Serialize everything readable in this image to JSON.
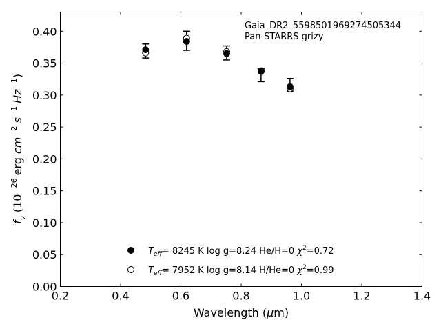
{
  "chart_data": {
    "type": "scatter",
    "annotation": [
      "Gaia_DR2_5598501969274505344",
      "Pan-STARRS grizy"
    ],
    "xlabel": {
      "text": "Wavelength (",
      "mu": "μ",
      "unit": "m)"
    },
    "ylabel": {
      "f": "f",
      "nu": "ν",
      "ten": "(10",
      "exp": "−26",
      "erg": "erg",
      "cm": "cm",
      "cm_exp": "−2",
      "s": "s",
      "s_exp": "−1",
      "hz": "Hz",
      "hz_exp": "−1",
      "close": ")"
    },
    "xlim": [
      0.2,
      1.4
    ],
    "ylim": [
      0.0,
      0.43
    ],
    "xticks": [
      0.2,
      0.4,
      0.6,
      0.8,
      1.0,
      1.2,
      1.4
    ],
    "xtick_labels": [
      "0.2",
      "0.4",
      "0.6",
      "0.8",
      "1.0",
      "1.2",
      "1.4"
    ],
    "yticks": [
      0.0,
      0.05,
      0.1,
      0.15,
      0.2,
      0.25,
      0.3,
      0.35,
      0.4
    ],
    "ytick_labels": [
      "0.00",
      "0.05",
      "0.10",
      "0.15",
      "0.20",
      "0.25",
      "0.30",
      "0.35",
      "0.40"
    ],
    "grid": false,
    "legend_position": "lower-center",
    "observed": {
      "x": [
        0.483,
        0.619,
        0.752,
        0.866,
        0.962
      ],
      "y": [
        0.369,
        0.385,
        0.366,
        0.331,
        0.316
      ],
      "yerr": [
        0.011,
        0.015,
        0.011,
        0.01,
        0.01
      ]
    },
    "series": [
      {
        "marker": "filled-circle",
        "x": [
          0.483,
          0.619,
          0.752,
          0.866,
          0.962
        ],
        "y": [
          0.371,
          0.384,
          0.365,
          0.337,
          0.313
        ],
        "legend": {
          "t": "T",
          "sub": "eff",
          "eq": "=  8245 K  log g=8.24  He/H=0  ",
          "chi": "χ",
          "sup": "2",
          "val": "=0.72"
        }
      },
      {
        "marker": "open-circle",
        "x": [
          0.483,
          0.619,
          0.752,
          0.866,
          0.962
        ],
        "y": [
          0.366,
          0.389,
          0.368,
          0.338,
          0.31
        ],
        "legend": {
          "t": "T",
          "sub": "eff",
          "eq": "=  7952 K  log g=8.14  H/He=0  ",
          "chi": "χ",
          "sup": "2",
          "val": "=0.99"
        }
      }
    ]
  }
}
